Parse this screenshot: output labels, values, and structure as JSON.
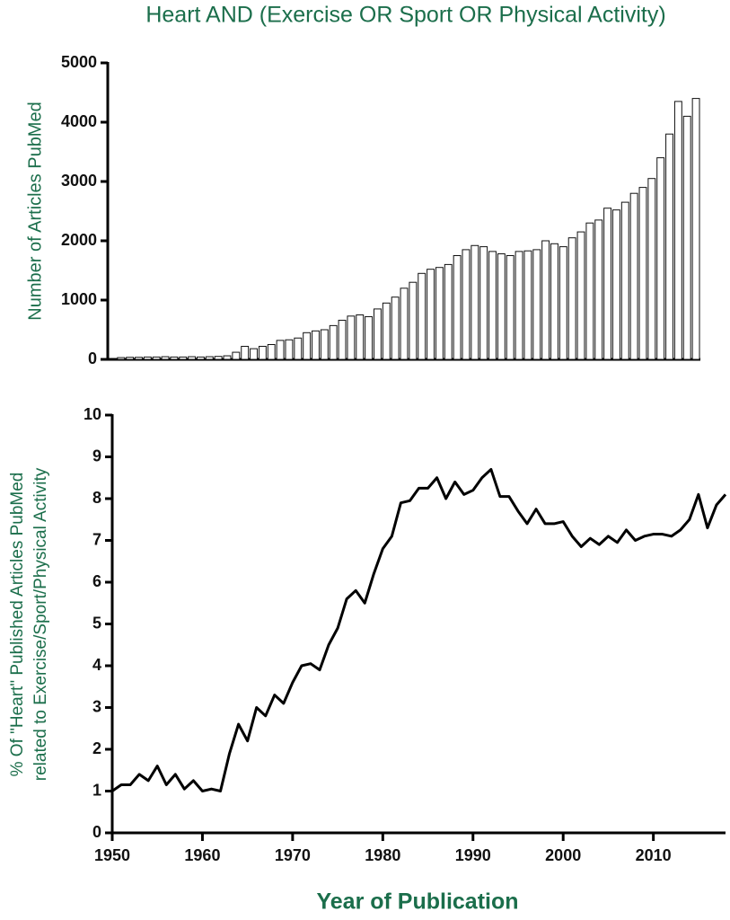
{
  "chart_data": [
    {
      "type": "bar",
      "title": "Heart AND (Exercise OR Sport OR Physical Activity)",
      "y_label": "Number of Articles PubMed",
      "x": [
        1950,
        1951,
        1952,
        1953,
        1954,
        1955,
        1956,
        1957,
        1958,
        1959,
        1960,
        1961,
        1962,
        1963,
        1964,
        1965,
        1966,
        1967,
        1968,
        1969,
        1970,
        1971,
        1972,
        1973,
        1974,
        1975,
        1976,
        1977,
        1978,
        1979,
        1980,
        1981,
        1982,
        1983,
        1984,
        1985,
        1986,
        1987,
        1988,
        1989,
        1990,
        1991,
        1992,
        1993,
        1994,
        1995,
        1996,
        1997,
        1998,
        1999,
        2000,
        2001,
        2002,
        2003,
        2004,
        2005,
        2006,
        2007,
        2008,
        2009,
        2010,
        2011,
        2012,
        2013,
        2014,
        2015
      ],
      "values": [
        30,
        35,
        35,
        40,
        40,
        45,
        40,
        40,
        45,
        40,
        45,
        50,
        60,
        120,
        220,
        180,
        220,
        250,
        320,
        330,
        360,
        450,
        480,
        500,
        570,
        660,
        730,
        750,
        720,
        850,
        950,
        1050,
        1200,
        1300,
        1450,
        1520,
        1550,
        1600,
        1750,
        1850,
        1920,
        1900,
        1820,
        1780,
        1750,
        1820,
        1830,
        1850,
        2000,
        1950,
        1900,
        2050,
        2150,
        2300,
        2350,
        2550,
        2520,
        2650,
        2800,
        2900,
        3050,
        3400,
        3800,
        4350,
        4100,
        4400
      ],
      "color": "#ffffff",
      "xlim": [
        1948.5,
        2015.5
      ],
      "ylim": [
        0,
        5000
      ],
      "yticks": [
        0,
        1000,
        2000,
        3000,
        4000,
        5000
      ]
    },
    {
      "type": "line",
      "x_label": "Year of Publication",
      "y_label": [
        "% Of \"Heart\" Published Articles PubMed",
        "related to Exercise/Sport/Physical Activity"
      ],
      "x": [
        1950,
        1951,
        1952,
        1953,
        1954,
        1955,
        1956,
        1957,
        1958,
        1959,
        1960,
        1961,
        1962,
        1963,
        1964,
        1965,
        1966,
        1967,
        1968,
        1969,
        1970,
        1971,
        1972,
        1973,
        1974,
        1975,
        1976,
        1977,
        1978,
        1979,
        1980,
        1981,
        1982,
        1983,
        1984,
        1985,
        1986,
        1987,
        1988,
        1989,
        1990,
        1991,
        1992,
        1993,
        1994,
        1995,
        1996,
        1997,
        1998,
        1999,
        2000,
        2001,
        2002,
        2003,
        2004,
        2005,
        2006,
        2007,
        2008,
        2009,
        2010,
        2011,
        2012,
        2013,
        2014,
        2015,
        2016,
        2017,
        2018
      ],
      "values": [
        1.0,
        1.15,
        1.15,
        1.4,
        1.25,
        1.6,
        1.15,
        1.4,
        1.05,
        1.25,
        1.0,
        1.05,
        1.0,
        1.9,
        2.6,
        2.2,
        3.0,
        2.8,
        3.3,
        3.1,
        3.6,
        4.0,
        4.05,
        3.9,
        4.5,
        4.9,
        5.6,
        5.8,
        5.5,
        6.2,
        6.8,
        7.1,
        7.9,
        7.95,
        8.25,
        8.25,
        8.5,
        8.0,
        8.4,
        8.1,
        8.2,
        8.5,
        8.7,
        8.05,
        8.05,
        7.7,
        7.4,
        7.75,
        7.4,
        7.4,
        7.45,
        7.1,
        6.85,
        7.05,
        6.9,
        7.1,
        6.95,
        7.25,
        7.0,
        7.1,
        7.15,
        7.15,
        7.1,
        7.25,
        7.5,
        8.1,
        7.3,
        7.85,
        8.1
      ],
      "color": "#000000",
      "xlim": [
        1950,
        2018
      ],
      "xticks": [
        1950,
        1960,
        1970,
        1980,
        1990,
        2000,
        2010
      ],
      "ylim": [
        0,
        10
      ],
      "yticks": [
        0,
        1,
        2,
        3,
        4,
        5,
        6,
        7,
        8,
        9,
        10
      ]
    }
  ]
}
